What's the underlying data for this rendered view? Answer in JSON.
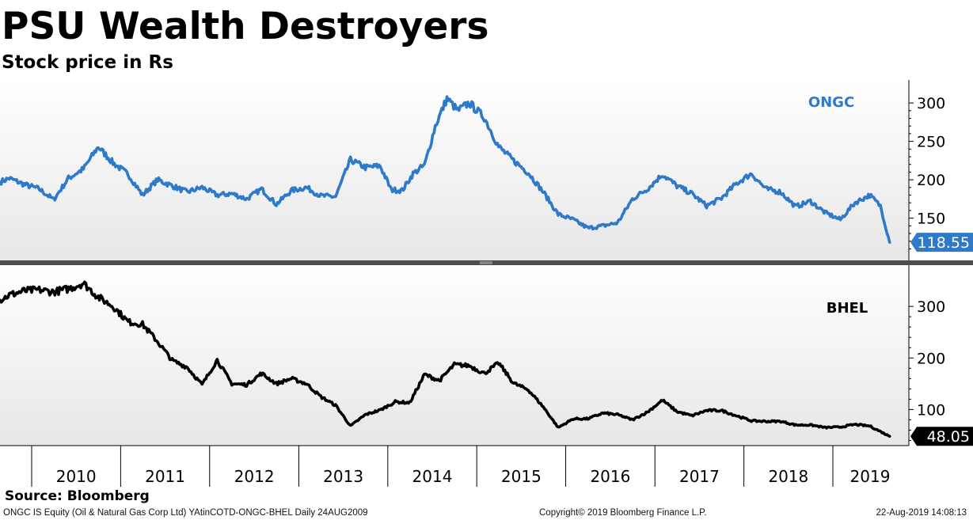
{
  "title": "PSU Wealth Destroyers",
  "subtitle": "Stock price in Rs",
  "source": "Source: Bloomberg",
  "footer": {
    "left": "ONGC IS Equity (Oil & Natural Gas Corp Ltd) YAtinCOTD-ONGC-BHEL  Daily 24AUG2009",
    "center": "Copyright© 2019 Bloomberg Finance L.P.",
    "right": "22-Aug-2019 14:08:13"
  },
  "chart_data": [
    {
      "type": "line",
      "series": [
        {
          "name": "ONGC",
          "color": "#2f7ac8",
          "last_value_label": "118.55",
          "x": [
            "2009-08-24",
            "2009-10-01",
            "2009-12-01",
            "2010-02-01",
            "2010-04-01",
            "2010-06-01",
            "2010-08-01",
            "2010-10-01",
            "2010-12-01",
            "2011-02-01",
            "2011-04-01",
            "2011-06-01",
            "2011-08-01",
            "2011-10-01",
            "2011-12-01",
            "2012-02-01",
            "2012-04-01",
            "2012-06-01",
            "2012-08-01",
            "2012-10-01",
            "2012-12-01",
            "2013-02-01",
            "2013-04-01",
            "2013-06-01",
            "2013-08-01",
            "2013-10-01",
            "2013-12-01",
            "2014-01-15",
            "2014-03-01",
            "2014-04-15",
            "2014-06-01",
            "2014-07-15",
            "2014-09-01",
            "2014-10-15",
            "2014-12-01",
            "2015-02-01",
            "2015-04-01",
            "2015-06-01",
            "2015-08-01",
            "2015-10-01",
            "2015-12-01",
            "2016-02-01",
            "2016-04-01",
            "2016-06-01",
            "2016-08-01",
            "2016-10-01",
            "2016-12-01",
            "2017-02-01",
            "2017-04-01",
            "2017-06-01",
            "2017-08-01",
            "2017-10-01",
            "2017-12-01",
            "2018-02-01",
            "2018-04-01",
            "2018-06-01",
            "2018-08-01",
            "2018-10-01",
            "2018-12-01",
            "2019-02-01",
            "2019-04-01",
            "2019-06-01",
            "2019-07-15",
            "2019-08-22"
          ],
          "values": [
            197,
            202,
            194,
            188,
            174,
            202,
            214,
            243,
            222,
            207,
            180,
            200,
            192,
            184,
            190,
            180,
            182,
            175,
            188,
            168,
            186,
            190,
            179,
            178,
            226,
            216,
            218,
            187,
            186,
            208,
            219,
            270,
            306,
            290,
            300,
            281,
            243,
            225,
            209,
            184,
            155,
            148,
            137,
            140,
            144,
            175,
            188,
            207,
            192,
            182,
            166,
            176,
            195,
            208,
            188,
            184,
            165,
            172,
            157,
            148,
            170,
            180,
            166,
            118.55
          ],
          "ylim": [
            95,
            330
          ],
          "ticks": [
            150,
            200,
            250,
            300
          ]
        }
      ]
    },
    {
      "type": "line",
      "series": [
        {
          "name": "BHEL",
          "color": "#000000",
          "last_value_label": "48.05",
          "x": [
            "2009-08-24",
            "2009-10-01",
            "2009-12-01",
            "2010-02-01",
            "2010-04-01",
            "2010-06-01",
            "2010-08-01",
            "2010-10-01",
            "2010-12-01",
            "2011-02-01",
            "2011-04-01",
            "2011-06-01",
            "2011-08-01",
            "2011-10-01",
            "2011-12-01",
            "2012-02-01",
            "2012-04-01",
            "2012-06-01",
            "2012-08-01",
            "2012-10-01",
            "2012-12-01",
            "2013-02-01",
            "2013-04-01",
            "2013-06-01",
            "2013-08-01",
            "2013-10-01",
            "2013-12-01",
            "2014-02-01",
            "2014-04-01",
            "2014-06-01",
            "2014-08-01",
            "2014-10-01",
            "2014-12-01",
            "2015-02-01",
            "2015-04-01",
            "2015-06-01",
            "2015-08-01",
            "2015-10-01",
            "2015-12-01",
            "2016-02-01",
            "2016-04-01",
            "2016-06-01",
            "2016-08-01",
            "2016-10-01",
            "2016-12-01",
            "2017-02-01",
            "2017-04-01",
            "2017-06-01",
            "2017-08-01",
            "2017-10-01",
            "2017-12-01",
            "2018-02-01",
            "2018-04-01",
            "2018-06-01",
            "2018-08-01",
            "2018-10-01",
            "2018-12-01",
            "2019-02-01",
            "2019-04-01",
            "2019-06-01",
            "2019-08-22"
          ],
          "values": [
            312,
            322,
            330,
            332,
            328,
            334,
            345,
            318,
            300,
            270,
            265,
            232,
            195,
            182,
            148,
            196,
            150,
            148,
            170,
            150,
            160,
            150,
            125,
            108,
            68,
            90,
            99,
            115,
            113,
            168,
            156,
            187,
            185,
            170,
            190,
            151,
            138,
            105,
            65,
            82,
            82,
            93,
            90,
            80,
            95,
            118,
            96,
            88,
            98,
            98,
            88,
            78,
            77,
            77,
            70,
            70,
            65,
            66,
            71,
            68,
            48.05
          ],
          "ylim": [
            30,
            380
          ],
          "ticks": [
            100,
            200,
            300
          ]
        }
      ]
    }
  ],
  "x_axis": {
    "tick_labels": [
      "2010",
      "2011",
      "2012",
      "2013",
      "2014",
      "2015",
      "2016",
      "2017",
      "2018",
      "2019"
    ]
  }
}
